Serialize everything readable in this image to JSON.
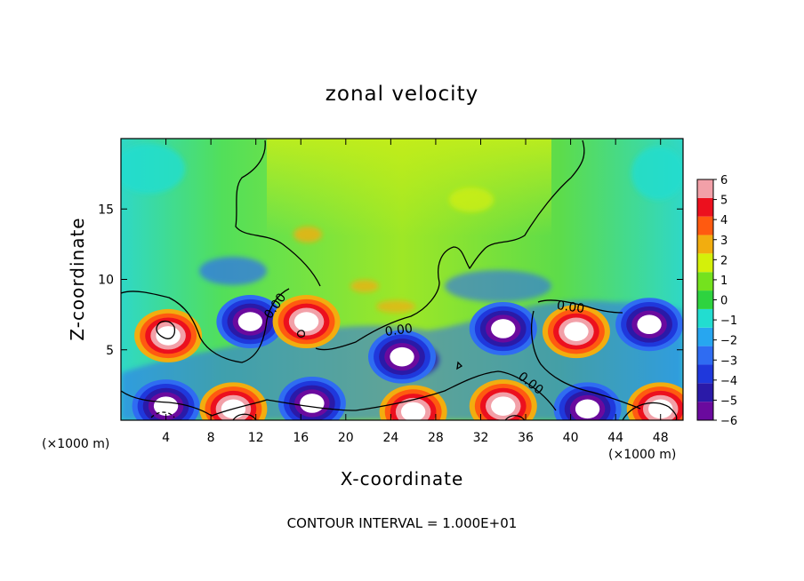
{
  "chart_data": {
    "type": "heatmap",
    "title": "zonal velocity",
    "xlabel": "X-coordinate",
    "ylabel": "Z-coordinate",
    "x_unit_left": "(×1000 m)",
    "x_unit_right": "(×1000 m)",
    "footer": "CONTOUR INTERVAL = 1.000E+01",
    "xlim": [
      0,
      50
    ],
    "ylim": [
      0,
      20
    ],
    "x_ticks": [
      4,
      8,
      12,
      16,
      20,
      24,
      28,
      32,
      36,
      40,
      44,
      48
    ],
    "y_ticks": [
      5,
      10,
      15
    ],
    "colorbar": {
      "levels": [
        -6,
        -5,
        -4,
        -3,
        -2,
        -1,
        0,
        1,
        2,
        3,
        4,
        5,
        6
      ],
      "tick_labels": [
        "6",
        "5",
        "4",
        "3",
        "2",
        "1",
        "0",
        "−1",
        "−2",
        "−3",
        "−4",
        "−5",
        "−6"
      ],
      "colors": [
        "#6a0a9e",
        "#2a1aa8",
        "#1f38dc",
        "#2f6cf2",
        "#27a6f0",
        "#22ddd0",
        "#2ed33f",
        "#74e21e",
        "#d4f00a",
        "#f2ad0f",
        "#ff5a10",
        "#ec101e",
        "#f2a0a8"
      ]
    },
    "contour_labels": [
      "0.00",
      "0.00",
      "0.00",
      "0.00"
    ],
    "features": [
      {
        "kind": "jet",
        "x": 4.2,
        "z": 6.0,
        "value": 6
      },
      {
        "kind": "jet",
        "x": 11.5,
        "z": 7.0,
        "value": -6
      },
      {
        "kind": "jet",
        "x": 16.5,
        "z": 7.0,
        "value": 6
      },
      {
        "kind": "jet",
        "x": 25.0,
        "z": 4.5,
        "value": -5
      },
      {
        "kind": "jet",
        "x": 34.0,
        "z": 6.5,
        "value": -6
      },
      {
        "kind": "jet",
        "x": 40.5,
        "z": 6.3,
        "value": 6
      },
      {
        "kind": "jet",
        "x": 47.0,
        "z": 6.8,
        "value": -6
      },
      {
        "kind": "jet",
        "x": 4.0,
        "z": 1.0,
        "value": -6
      },
      {
        "kind": "jet",
        "x": 10.0,
        "z": 0.8,
        "value": 6
      },
      {
        "kind": "jet",
        "x": 17.0,
        "z": 1.2,
        "value": -6
      },
      {
        "kind": "jet",
        "x": 26.0,
        "z": 0.6,
        "value": 6
      },
      {
        "kind": "jet",
        "x": 34.0,
        "z": 1.0,
        "value": 6
      },
      {
        "kind": "jet",
        "x": 41.5,
        "z": 0.8,
        "value": -6
      },
      {
        "kind": "jet",
        "x": 48.0,
        "z": 0.8,
        "value": 6
      }
    ]
  }
}
